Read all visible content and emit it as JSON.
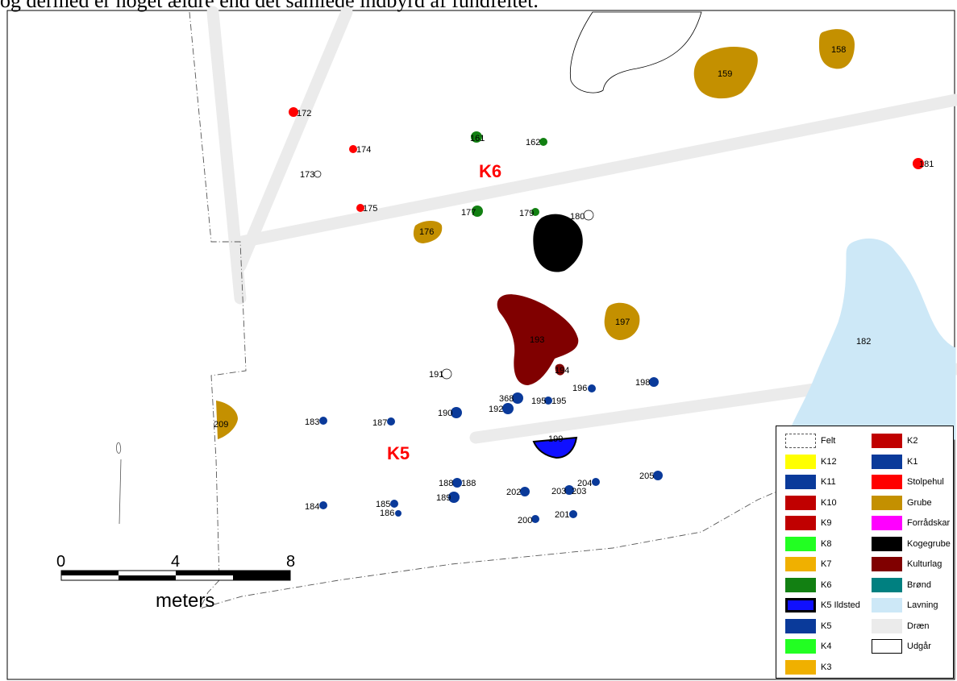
{
  "header_text": "og dermed er noget ældre end det samlede indbyrd af fundfeltet.",
  "phases": {
    "k5": "K5",
    "k6": "K6"
  },
  "features": {
    "f158": "158",
    "f159": "159",
    "f161": "161",
    "f162": "162",
    "f172": "172",
    "f173": "173",
    "f174": "174",
    "f175": "175",
    "f176": "176",
    "f177": "177",
    "f179": "179",
    "f180": "180",
    "f181": "181",
    "f182": "182",
    "f183": "183",
    "f184": "184",
    "f185": "185",
    "f186": "186",
    "f187": "187",
    "f188a": "188",
    "f188b": "188",
    "f189": "189",
    "f190": "190",
    "f191": "191",
    "f192": "192",
    "f193": "193",
    "f194": "194",
    "f195a": "195",
    "f195b": "195",
    "f196": "196",
    "f197": "197",
    "f198": "198",
    "f199": "199",
    "f200": "200",
    "f201": "201",
    "f202": "202",
    "f203a": "203",
    "f203b": "203",
    "f204": "204",
    "f205": "205",
    "f209": "209",
    "f368": "368"
  },
  "scale_bar": {
    "t0": "0",
    "t4": "4",
    "t8": "8",
    "unit": "meters"
  },
  "legend": {
    "col1": [
      {
        "label": "Felt",
        "color": "#ffffff",
        "style": "dashed"
      },
      {
        "label": "K12",
        "color": "#ffff00"
      },
      {
        "label": "K11",
        "color": "#0a3a9a"
      },
      {
        "label": "K10",
        "color": "#c00000"
      },
      {
        "label": "K9",
        "color": "#c00000"
      },
      {
        "label": "K8",
        "color": "#22ff22"
      },
      {
        "label": "K7",
        "color": "#f0b000"
      },
      {
        "label": "K6",
        "color": "#128012"
      },
      {
        "label": "K5 Ildsted",
        "color": "#1010ff",
        "style": "thick"
      },
      {
        "label": "K5",
        "color": "#0a3a9a"
      },
      {
        "label": "K4",
        "color": "#22ff22"
      },
      {
        "label": "K3",
        "color": "#f0b000"
      }
    ],
    "col2": [
      {
        "label": "K2",
        "color": "#c00000"
      },
      {
        "label": "K1",
        "color": "#0a3a9a"
      },
      {
        "label": "Stolpehul",
        "color": "#ff0000"
      },
      {
        "label": "Grube",
        "color": "#c49000"
      },
      {
        "label": "Forrådskar",
        "color": "#ff00ff"
      },
      {
        "label": "Kogegrube",
        "color": "#000000"
      },
      {
        "label": "Kulturlag",
        "color": "#800000"
      },
      {
        "label": "Brønd",
        "color": "#008080"
      },
      {
        "label": "Lavning",
        "color": "#cde8f7"
      },
      {
        "label": "Dræn",
        "color": "#ebebeb"
      },
      {
        "label": "Udgår",
        "color": "#ffffff"
      }
    ]
  }
}
